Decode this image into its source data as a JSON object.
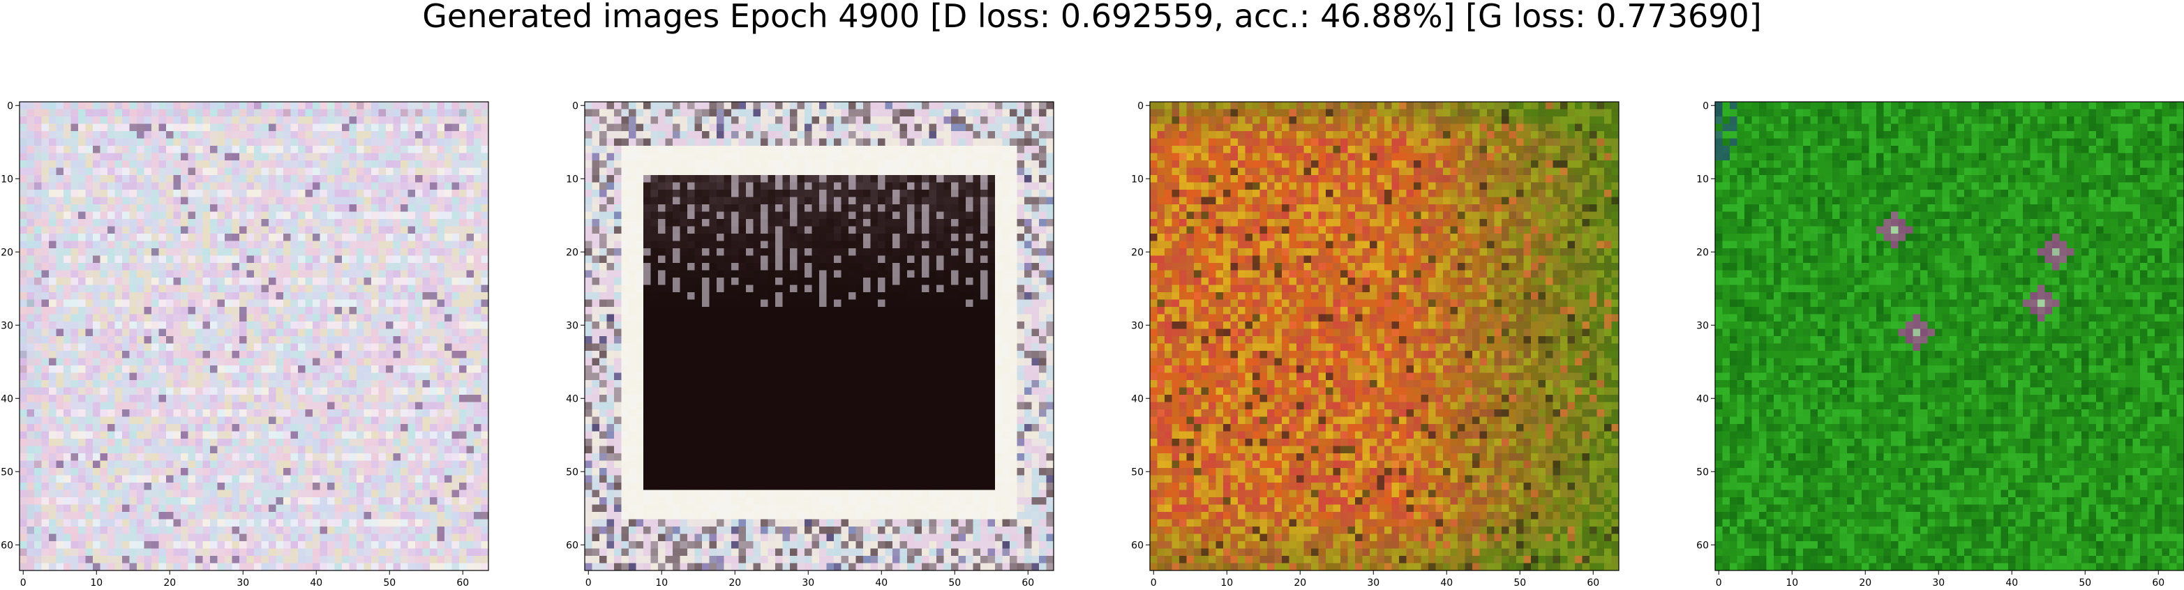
{
  "figure": {
    "title": "Generated images Epoch 4900 [D loss: 0.692559, acc.: 46.88%] [G loss: 0.773690]"
  },
  "axes_common": {
    "x_ticks": [
      "0",
      "10",
      "20",
      "30",
      "40",
      "50",
      "60"
    ],
    "y_ticks": [
      "0",
      "10",
      "20",
      "30",
      "40",
      "50",
      "60"
    ],
    "x_tick_values": [
      0,
      10,
      20,
      30,
      40,
      50,
      60
    ],
    "y_tick_values": [
      0,
      10,
      20,
      30,
      40,
      50,
      60
    ],
    "xlim": [
      -0.5,
      63.5
    ],
    "ylim": [
      63.5,
      -0.5
    ]
  },
  "panels": [
    {
      "id": "image-1",
      "description_palette": "pastel-noise",
      "base_color": "#e8dcec",
      "accent_colors": [
        "#d8b8e6",
        "#b8e6e6",
        "#f0c8d8",
        "#c8d8f0",
        "#e8e0b8",
        "#7a5a8a"
      ]
    },
    {
      "id": "image-2",
      "description_palette": "dark-center-frame",
      "base_color": "#e6dcea",
      "accent_colors": [
        "#1a0c0c",
        "#3a2424",
        "#b8e0e6",
        "#e8c8e0",
        "#f4f0d8"
      ]
    },
    {
      "id": "image-3",
      "description_palette": "orange-green",
      "base_color": "#b87820",
      "accent_colors": [
        "#e85a20",
        "#d84040",
        "#6a9a1a",
        "#e8b820",
        "#3c7a10",
        "#f06a3a"
      ]
    },
    {
      "id": "image-4",
      "description_palette": "green",
      "base_color": "#2aa01e",
      "accent_colors": [
        "#1e8a14",
        "#34b82a",
        "#136a10",
        "#c83ab8",
        "#f0f0f0"
      ]
    }
  ]
}
